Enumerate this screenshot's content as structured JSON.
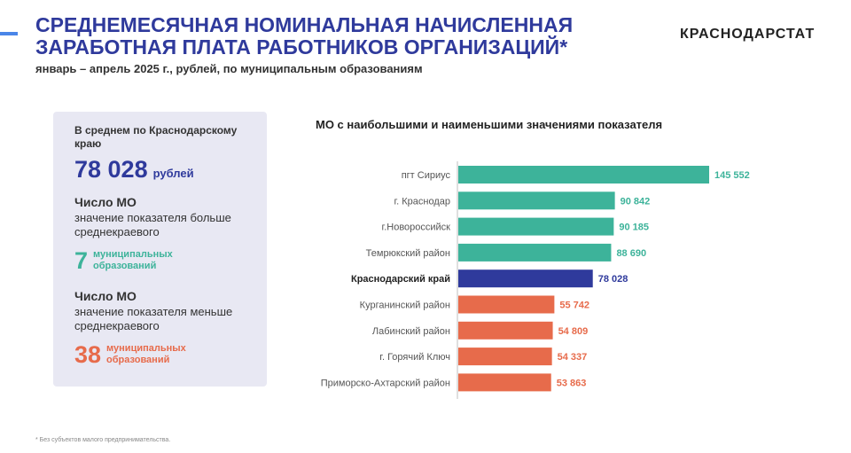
{
  "header": {
    "title_line1": "СРЕДНЕМЕСЯЧНАЯ НОМИНАЛЬНАЯ НАЧИСЛЕННАЯ",
    "title_line2": "ЗАРАБОТНАЯ ПЛАТА РАБОТНИКОВ ОРГАНИЗАЦИЙ*",
    "subtitle": "январь – апрель 2025 г., рублей, по муниципальным образованиям",
    "brand": "КРАСНОДАРСТАТ"
  },
  "summary": {
    "average_label": "В среднем по Краснодарскому краю",
    "average_value": "78 028",
    "average_unit": "рублей",
    "above": {
      "heading": "Число МО",
      "description": "значение показателя больше среднекраевого",
      "count": "7",
      "count_text_line1": "муниципальных",
      "count_text_line2": "образований"
    },
    "below": {
      "heading": "Число МО",
      "description": "значение показателя меньше среднекраевого",
      "count": "38",
      "count_text_line1": "муниципальных",
      "count_text_line2": "образований"
    }
  },
  "chart_data": {
    "type": "bar",
    "orientation": "horizontal",
    "title": "МО с наибольшими и наименьшими значениями показателя",
    "categories": [
      "пгт Сириус",
      "г. Краснодар",
      "г.Новороссийск",
      "Темрюкский район",
      "Краснодарский край",
      "Курганинский район",
      "Лабинский район",
      "г. Горячий Ключ",
      "Приморско-Ахтарский район"
    ],
    "values": [
      145552,
      90842,
      90185,
      88690,
      78028,
      55742,
      54809,
      54337,
      53863
    ],
    "value_labels": [
      "145 552",
      "90 842",
      "90 185",
      "88 690",
      "78 028",
      "55 742",
      "54 809",
      "54 337",
      "53 863"
    ],
    "bar_groups": [
      "high",
      "high",
      "high",
      "high",
      "region",
      "low",
      "low",
      "low",
      "low"
    ],
    "colors": {
      "high": "#3db39a",
      "region": "#2f3a9c",
      "low": "#e76b4b"
    },
    "xlim": [
      0,
      145552
    ],
    "grid": false
  },
  "footnote": "* Без субъектов малого предпринимательства."
}
